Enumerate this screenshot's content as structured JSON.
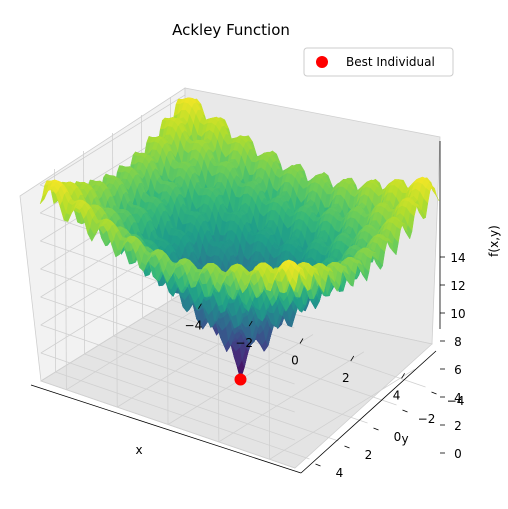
{
  "chart_data": {
    "type": "surface3d",
    "function": "ackley",
    "title": "Ackley Function",
    "xlabel": "x",
    "ylabel": "y",
    "zlabel": "f(x,y)",
    "xlim": [
      -5,
      5
    ],
    "ylim": [
      -5,
      5
    ],
    "zlim": [
      0,
      14.5
    ],
    "x_ticks": [
      -4,
      -2,
      0,
      2,
      4
    ],
    "y_ticks": [
      -4,
      -2,
      0,
      2,
      4
    ],
    "z_ticks": [
      0,
      2,
      4,
      6,
      8,
      10,
      12,
      14
    ],
    "colormap": "viridis",
    "grid": true,
    "legend": {
      "position": "top-right",
      "entries": [
        {
          "label": "Best Individual",
          "color": "#ff0000"
        }
      ]
    },
    "best_individual": {
      "x": 0,
      "y": 0,
      "z": 0
    }
  }
}
